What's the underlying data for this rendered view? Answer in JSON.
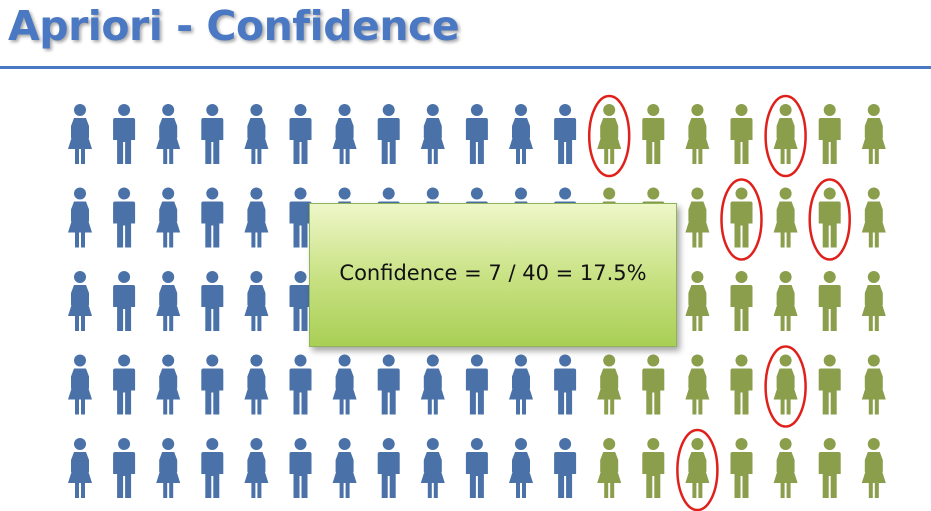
{
  "title": "Apriori - Confidence",
  "callout": {
    "text": "Confidence = 7 / 40 = 17.5%"
  },
  "figure_grid": {
    "rows": 5,
    "columns": 19,
    "blue_per_row": 12,
    "green_per_row": 7,
    "highlighted": [
      {
        "row": 1,
        "column": 13
      },
      {
        "row": 1,
        "column": 17
      },
      {
        "row": 2,
        "column": 16
      },
      {
        "row": 2,
        "column": 18
      },
      {
        "row": 4,
        "column": 17
      },
      {
        "row": 5,
        "column": 15
      }
    ]
  },
  "colors": {
    "title": "#4a78c2",
    "blue_figure": "#4a72a8",
    "green_figure": "#8a9e4c",
    "highlight_ring": "#e0201b"
  },
  "icons": [
    "female-person-icon",
    "male-person-icon"
  ]
}
